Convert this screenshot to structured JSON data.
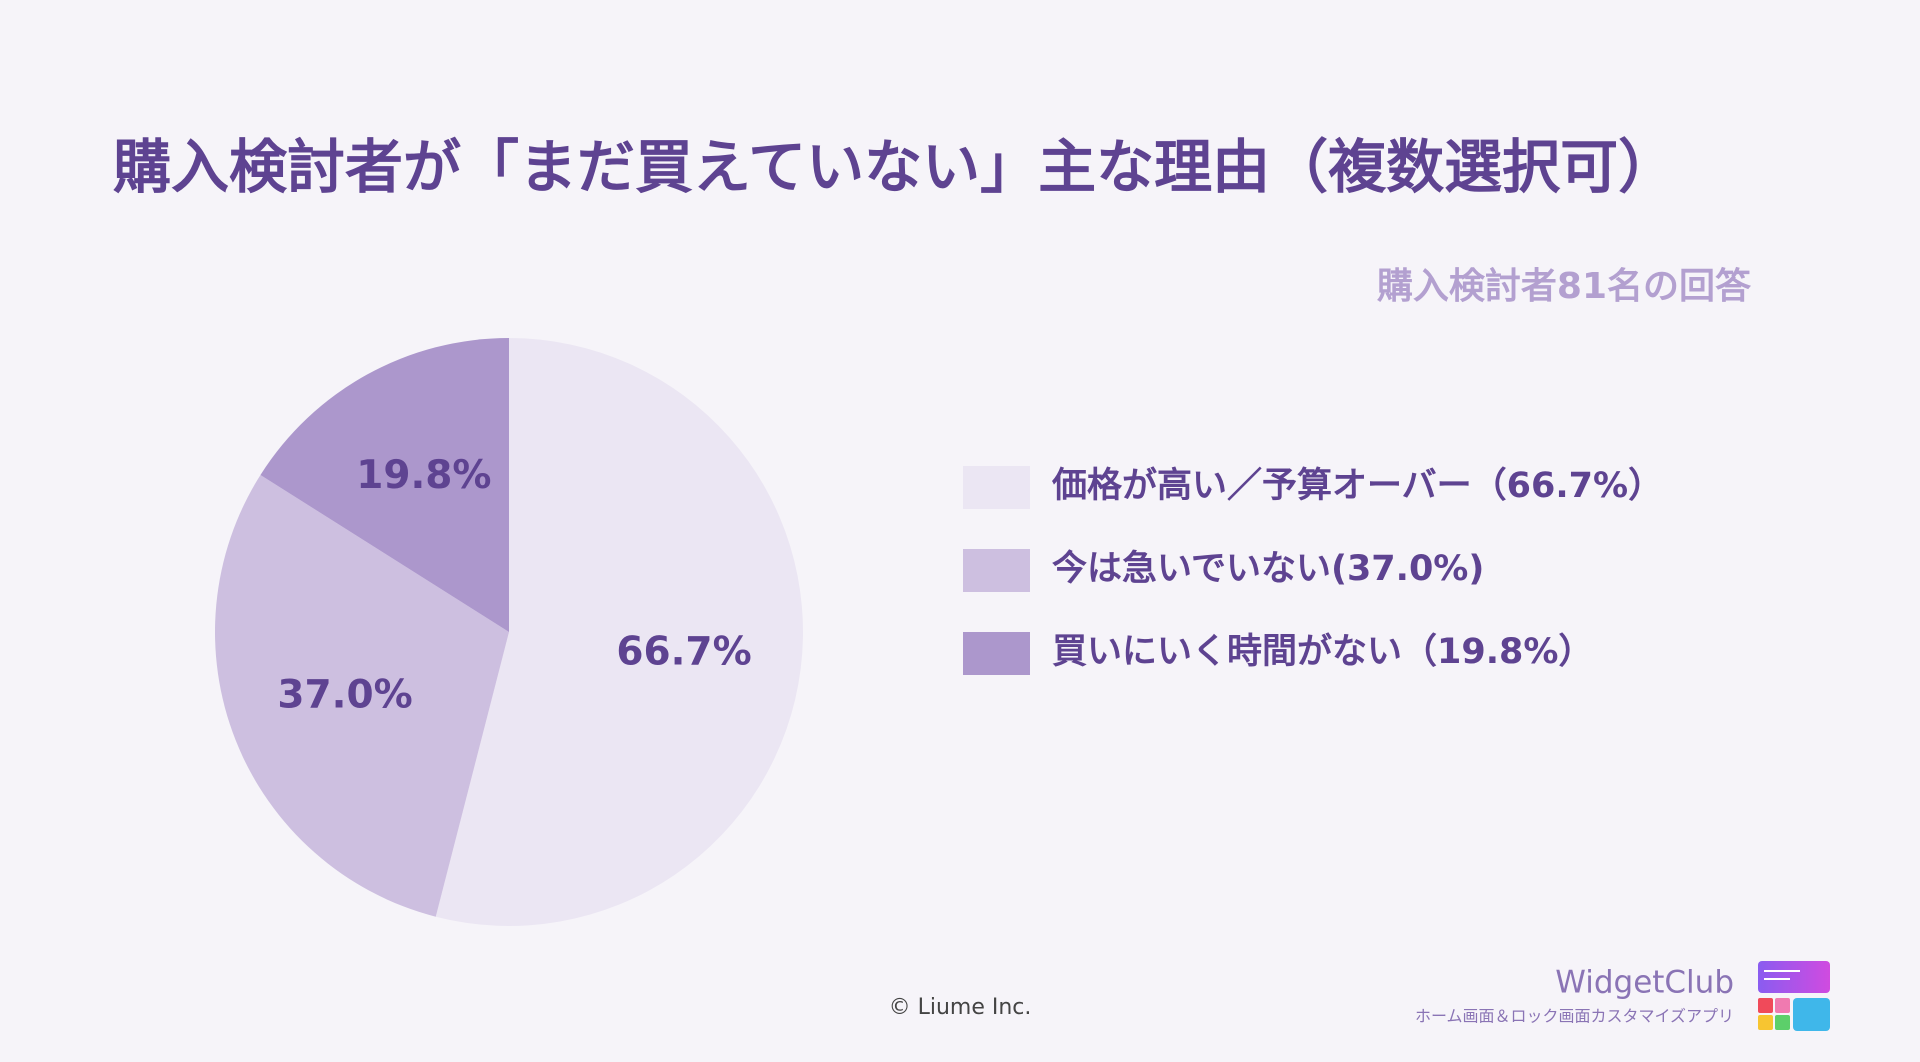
{
  "chart_data": {
    "type": "pie",
    "title": "購入検討者が「まだ買えていない」主な理由（複数選択可）",
    "subtitle": "購入検討者81名の回答",
    "categories": [
      "価格が高い／予算オーバー（66.7%）",
      "今は急いでいない(37.0%)",
      "買いにいく時間がない（19.8%）"
    ],
    "values": [
      66.7,
      37.0,
      19.8
    ],
    "value_labels": [
      "66.7%",
      "37.0%",
      "19.8%"
    ],
    "colors": [
      "#ebe6f3",
      "#cdbfe0",
      "#ac97cc"
    ]
  },
  "footer": {
    "copyright": "© Liume Inc.",
    "brand": "WidgetClub",
    "tagline": "ホーム画面＆ロック画面カスタマイズアプリ"
  }
}
